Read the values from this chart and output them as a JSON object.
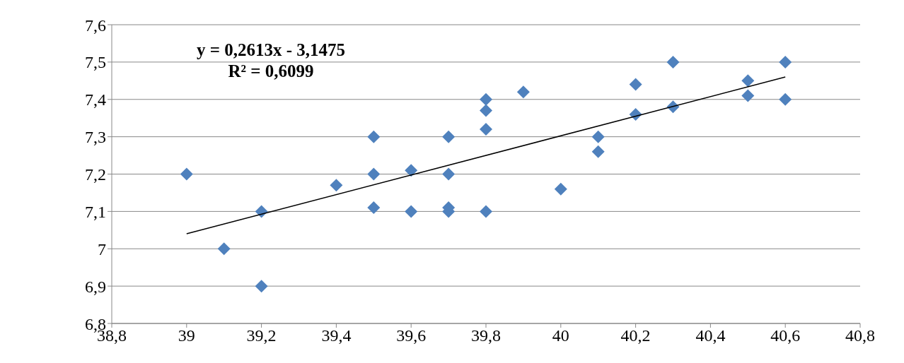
{
  "chart_data": {
    "type": "scatter",
    "annotations": [
      "y = 0,2613x - 3,1475",
      "R² = 0,6099"
    ],
    "series": [
      {
        "marker": "diamond",
        "color": "#4f81bd",
        "x": [
          39.0,
          39.1,
          39.2,
          39.2,
          39.4,
          39.5,
          39.5,
          39.5,
          39.6,
          39.6,
          39.7,
          39.7,
          39.7,
          39.7,
          39.8,
          39.8,
          39.8,
          39.8,
          39.9,
          40.0,
          40.1,
          40.1,
          40.2,
          40.2,
          40.3,
          40.3,
          40.5,
          40.5,
          40.6,
          40.6
        ],
        "values": [
          7.2,
          7.0,
          7.1,
          6.9,
          7.17,
          7.3,
          7.2,
          7.11,
          7.21,
          7.1,
          7.3,
          7.2,
          7.11,
          7.1,
          7.4,
          7.37,
          7.32,
          7.1,
          7.42,
          7.16,
          7.3,
          7.26,
          7.44,
          7.36,
          7.5,
          7.38,
          7.45,
          7.41,
          7.5,
          7.4
        ]
      },
      {
        "type": "line",
        "color": "#000000",
        "x": [
          39.0,
          40.6
        ],
        "values": [
          7.04,
          7.46
        ]
      }
    ],
    "xlim": [
      38.8,
      40.8
    ],
    "ylim": [
      6.8,
      7.6
    ],
    "xticks": [
      {
        "value": 38.8,
        "label": "38,8"
      },
      39,
      {
        "value": 39.2,
        "label": "39,2"
      },
      {
        "value": 39.4,
        "label": "39,4"
      },
      {
        "value": 39.6,
        "label": "39,6"
      },
      {
        "value": 39.8,
        "label": "39,8"
      },
      40,
      {
        "value": 40.2,
        "label": "40,2"
      },
      {
        "value": 40.4,
        "label": "40,4"
      },
      {
        "value": 40.6,
        "label": "40,6"
      },
      {
        "value": 40.8,
        "label": "40,8"
      }
    ],
    "yticks": [
      {
        "value": 6.8,
        "label": "6,8"
      },
      {
        "value": 6.9,
        "label": "6,9"
      },
      7,
      {
        "value": 7.1,
        "label": "7,1"
      },
      {
        "value": 7.2,
        "label": "7,2"
      },
      {
        "value": 7.3,
        "label": "7,3"
      },
      {
        "value": 7.4,
        "label": "7,4"
      },
      {
        "value": 7.5,
        "label": "7,5"
      },
      {
        "value": 7.6,
        "label": "7,6"
      }
    ],
    "grid": "y",
    "line_style": "solid"
  }
}
